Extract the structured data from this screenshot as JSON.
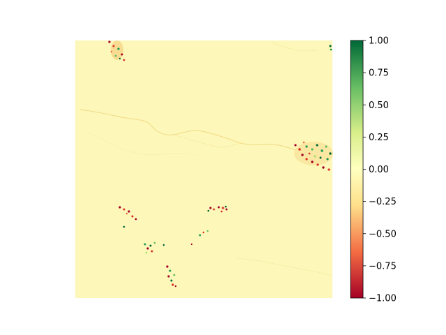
{
  "chart_data": {
    "type": "heatmap",
    "title": "",
    "xlabel": "",
    "ylabel": "",
    "axes_visible": false,
    "colormap": "RdYlGn",
    "colormap_stops": [
      "#a50026",
      "#f46d43",
      "#fee08b",
      "#ffffbf",
      "#d9ef8b",
      "#66bd63",
      "#006837"
    ],
    "background_color": "#fdf7b8",
    "clim": [
      -1.0,
      1.0
    ],
    "colorbar": {
      "ticks": [
        1.0,
        0.75,
        0.5,
        0.25,
        0.0,
        -0.25,
        -0.5,
        -0.75,
        -1.0
      ],
      "tick_labels": [
        "1.00",
        "0.75",
        "0.50",
        "0.25",
        "0.00",
        "−0.25",
        "−0.50",
        "−0.75",
        "−1.00"
      ]
    }
  }
}
